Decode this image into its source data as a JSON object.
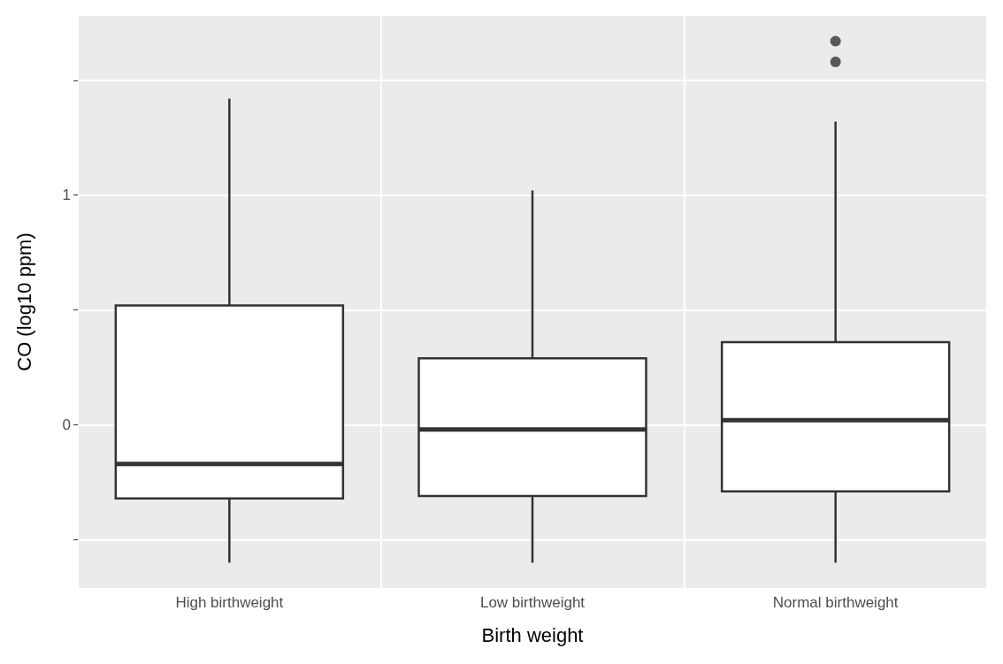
{
  "chart_data": {
    "type": "box",
    "xlabel": "Birth weight",
    "ylabel": "CO (log10 ppm)",
    "categories": [
      "High birthweight",
      "Low birthweight",
      "Normal birthweight"
    ],
    "boxes": [
      {
        "low": -0.6,
        "q1": -0.32,
        "median": -0.17,
        "q3": 0.52,
        "high": 1.42
      },
      {
        "low": -0.6,
        "q1": -0.31,
        "median": -0.02,
        "q3": 0.29,
        "high": 1.02
      },
      {
        "low": -0.6,
        "q1": -0.29,
        "median": 0.02,
        "q3": 0.36,
        "high": 1.32,
        "outliers": [
          1.58,
          1.67
        ]
      }
    ],
    "color": "#ffffff",
    "ylim": [
      -0.71,
      1.78
    ],
    "yticks": [
      {
        "value": -0.5,
        "label": null
      },
      0,
      {
        "value": 0.5,
        "label": null
      },
      1,
      {
        "value": 1.5,
        "label": null
      }
    ],
    "grid": true
  }
}
